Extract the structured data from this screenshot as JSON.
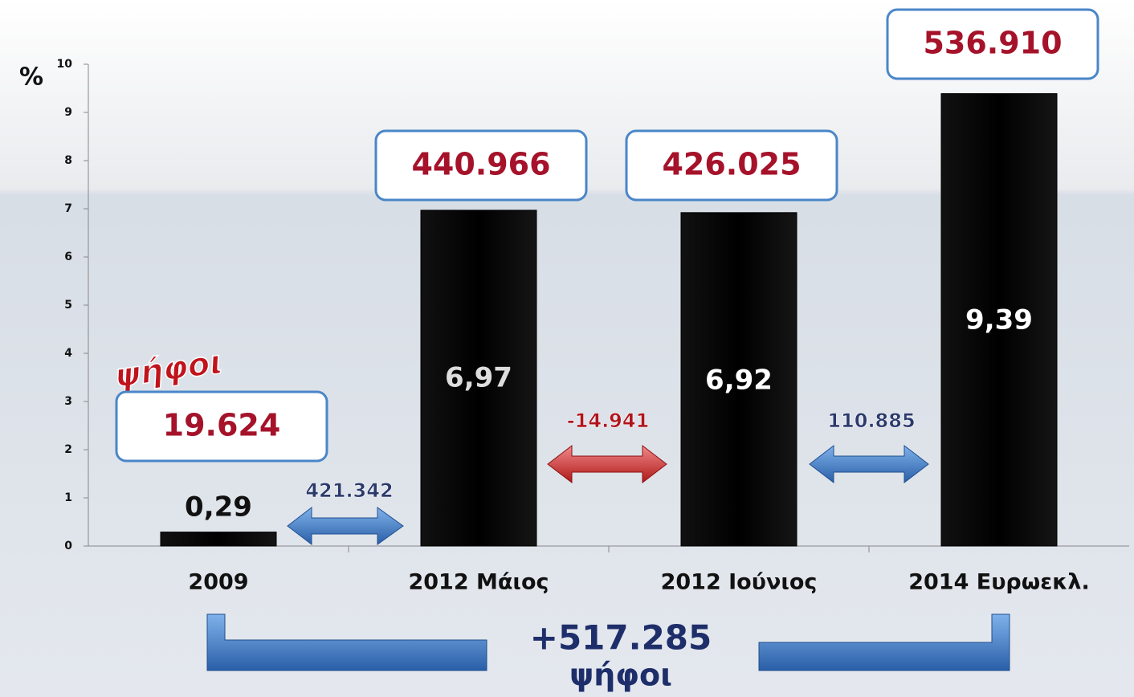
{
  "chart_data": {
    "type": "bar",
    "y_label": "%",
    "categories": [
      "2009",
      "2012 Μάιος",
      "2012 Ιούνιος",
      "2014 Ευρωεκλ."
    ],
    "values": [
      0.29,
      6.97,
      6.92,
      9.39
    ],
    "value_labels": [
      "0,29",
      "6,97",
      "6,92",
      "9,39"
    ],
    "color": "#000000",
    "ylim": [
      0,
      10
    ],
    "yticks": [
      0,
      1,
      2,
      3,
      4,
      5,
      6,
      7,
      8,
      9,
      10
    ],
    "votes": [
      "19.624",
      "440.966",
      "426.025",
      "536.910"
    ],
    "votes_label": "ψήφοι",
    "differences": [
      "421.342",
      "-14.941",
      "110.885"
    ],
    "total_change": "+517.285",
    "total_label": "ψήφοι"
  }
}
